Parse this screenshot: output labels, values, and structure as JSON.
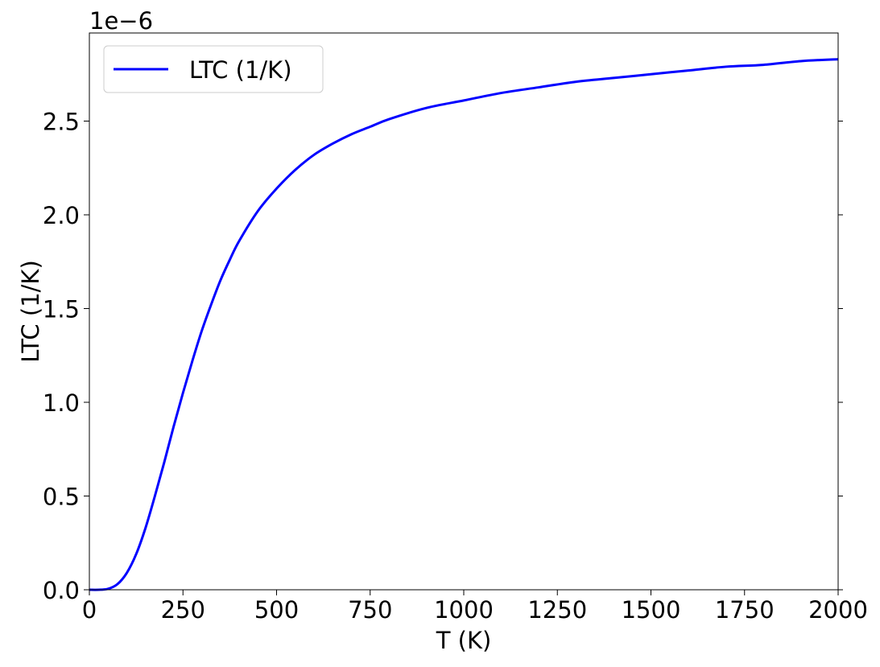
{
  "chart_data": {
    "type": "line",
    "title": "",
    "xlabel": "T (K)",
    "ylabel": "LTC (1/K)",
    "offset_text": "1e−6",
    "xlim": [
      0,
      2000
    ],
    "ylim": [
      0,
      2.97
    ],
    "y_scale_factor": 1e-06,
    "xticks": [
      0,
      250,
      500,
      750,
      1000,
      1250,
      1500,
      1750,
      2000
    ],
    "xtick_labels": [
      "0",
      "250",
      "500",
      "750",
      "1000",
      "1250",
      "1500",
      "1750",
      "2000"
    ],
    "yticks": [
      0.0,
      0.5,
      1.0,
      1.5,
      2.0,
      2.5
    ],
    "ytick_labels": [
      "0.0",
      "0.5",
      "1.0",
      "1.5",
      "2.0",
      "2.5"
    ],
    "grid": false,
    "legend": {
      "position": "top-left",
      "entries": [
        "LTC (1/K)"
      ]
    },
    "series": [
      {
        "name": "LTC (1/K)",
        "color": "#0000ff",
        "x": [
          0,
          25,
          50,
          75,
          100,
          125,
          150,
          175,
          200,
          225,
          250,
          275,
          300,
          325,
          350,
          375,
          400,
          450,
          500,
          550,
          600,
          650,
          700,
          750,
          800,
          900,
          1000,
          1100,
          1200,
          1300,
          1400,
          1500,
          1600,
          1700,
          1800,
          1900,
          2000
        ],
        "y": [
          0.0,
          0.0,
          0.005,
          0.03,
          0.09,
          0.19,
          0.33,
          0.5,
          0.68,
          0.87,
          1.05,
          1.22,
          1.38,
          1.52,
          1.65,
          1.76,
          1.86,
          2.02,
          2.14,
          2.24,
          2.32,
          2.38,
          2.43,
          2.47,
          2.51,
          2.57,
          2.61,
          2.65,
          2.68,
          2.71,
          2.73,
          2.75,
          2.77,
          2.79,
          2.8,
          2.82,
          2.83
        ]
      }
    ]
  }
}
